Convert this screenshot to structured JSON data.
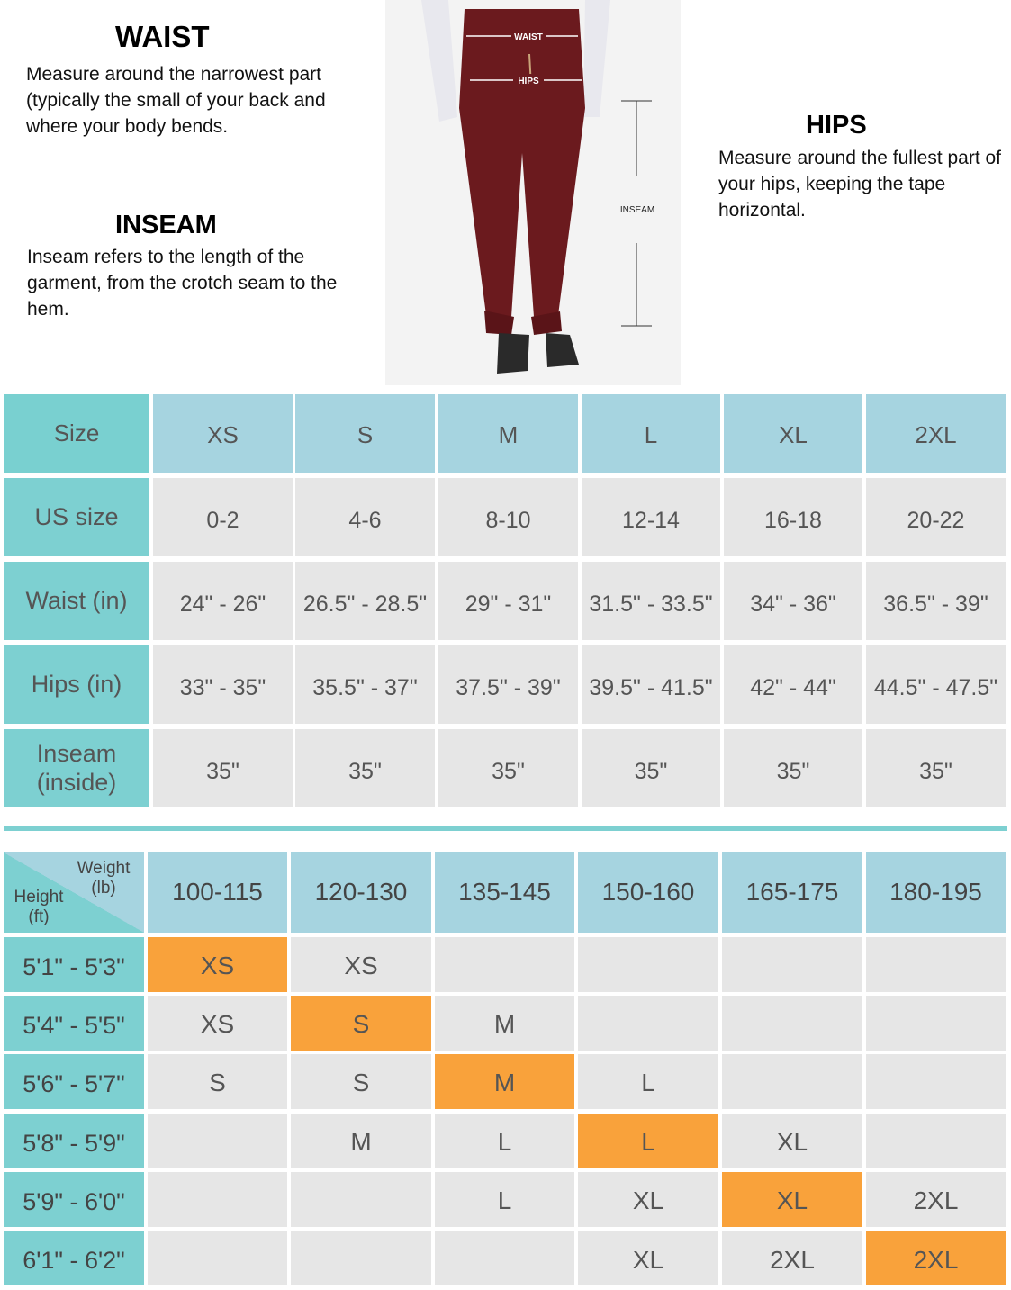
{
  "waist": {
    "title": "WAIST",
    "text": "Measure around the narrowest part (typically the small of your back and where your body bends."
  },
  "inseam": {
    "title": "INSEAM",
    "text": "Inseam refers to the length of the garment, from the crotch seam to the hem."
  },
  "hips": {
    "title": "HIPS",
    "text": "Measure around the fullest part of your hips, keeping the tape horizontal."
  },
  "figure": {
    "waist": "WAIST",
    "hips": "HIPS",
    "inseam": "INSEAM"
  },
  "size_table": {
    "header": [
      "Size",
      "XS",
      "S",
      "M",
      "L",
      "XL",
      "2XL"
    ],
    "rows": [
      [
        "US size",
        "0-2",
        "4-6",
        "8-10",
        "12-14",
        "16-18",
        "20-22"
      ],
      [
        "Waist (in)",
        "24\" - 26\"",
        "26.5\" - 28.5\"",
        "29\" - 31\"",
        "31.5\" - 33.5\"",
        "34\" - 36\"",
        "36.5\" - 39\""
      ],
      [
        "Hips (in)",
        "33\" - 35\"",
        "35.5\" - 37\"",
        "37.5\" - 39\"",
        "39.5\" - 41.5\"",
        "42\" - 44\"",
        "44.5\" - 47.5\""
      ],
      [
        "Inseam (inside)",
        "35\"",
        "35\"",
        "35\"",
        "35\"",
        "35\"",
        "35\""
      ]
    ]
  },
  "fit_table": {
    "corner_weight": "Weight (lb)",
    "corner_height": "Height (ft)",
    "header": [
      "100-115",
      "120-130",
      "135-145",
      "150-160",
      "165-175",
      "180-195"
    ],
    "highlight_color": "#f9a23b",
    "rows": [
      {
        "label": "5'1\" - 5'3\"",
        "cells": [
          "XS",
          "XS",
          null,
          null,
          null,
          null
        ],
        "highlight": 0
      },
      {
        "label": "5'4\" - 5'5\"",
        "cells": [
          "XS",
          "S",
          "M",
          null,
          null,
          null
        ],
        "highlight": 1
      },
      {
        "label": "5'6\" - 5'7\"",
        "cells": [
          "S",
          "S",
          "M",
          "L",
          null,
          null
        ],
        "highlight": 2
      },
      {
        "label": "5'8\" - 5'9\"",
        "cells": [
          null,
          "M",
          "L",
          "L",
          "XL",
          null
        ],
        "highlight": 3
      },
      {
        "label": "5'9\" - 6'0\"",
        "cells": [
          null,
          null,
          "L",
          "XL",
          "XL",
          "2XL"
        ],
        "highlight": 4
      },
      {
        "label": "6'1\" - 6'2\"",
        "cells": [
          null,
          null,
          null,
          "XL",
          "2XL",
          "2XL"
        ],
        "highlight": 5
      }
    ]
  }
}
